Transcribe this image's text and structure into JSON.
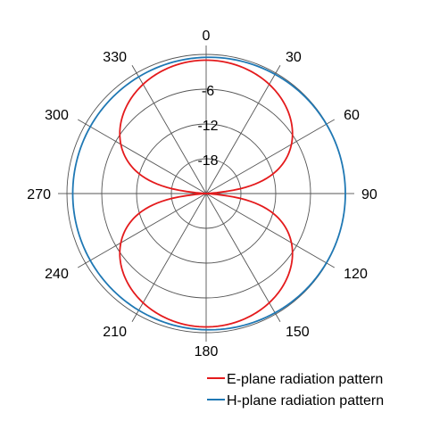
{
  "chart_data": {
    "type": "polar-line",
    "angular_axis": {
      "unit": "degrees",
      "direction": "clockwise",
      "zero_at": "top",
      "tick_labels": [
        "0",
        "30",
        "60",
        "90",
        "120",
        "150",
        "180",
        "210",
        "240",
        "270",
        "300",
        "330"
      ]
    },
    "radial_axis": {
      "unit": "dB",
      "range": [
        -24,
        0
      ],
      "tick_labels": [
        "-18",
        "-12",
        "-6"
      ],
      "tick_values": [
        -18,
        -12,
        -6
      ]
    },
    "grid": true,
    "legend_position": "bottom-right",
    "series": [
      {
        "name": "E-plane radiation pattern",
        "color": "#e41a1c",
        "pattern": "cos-squared",
        "angles_deg": [
          0,
          15,
          30,
          45,
          60,
          75,
          90,
          105,
          120,
          135,
          150,
          165,
          180,
          195,
          210,
          225,
          240,
          255,
          270,
          285,
          300,
          315,
          330,
          345
        ],
        "values_db": [
          -1.0,
          -1.3,
          -2.3,
          -4.0,
          -7.0,
          -12.7,
          -24,
          -12.7,
          -7.0,
          -4.0,
          -2.3,
          -1.3,
          -1.0,
          -1.3,
          -2.3,
          -4.0,
          -7.0,
          -12.7,
          -24,
          -12.7,
          -7.0,
          -4.0,
          -2.3,
          -1.3
        ]
      },
      {
        "name": "H-plane radiation pattern",
        "color": "#1f78b4",
        "pattern": "near-omnidirectional",
        "values_db_range": [
          -1.0,
          0.0
        ]
      }
    ]
  }
}
